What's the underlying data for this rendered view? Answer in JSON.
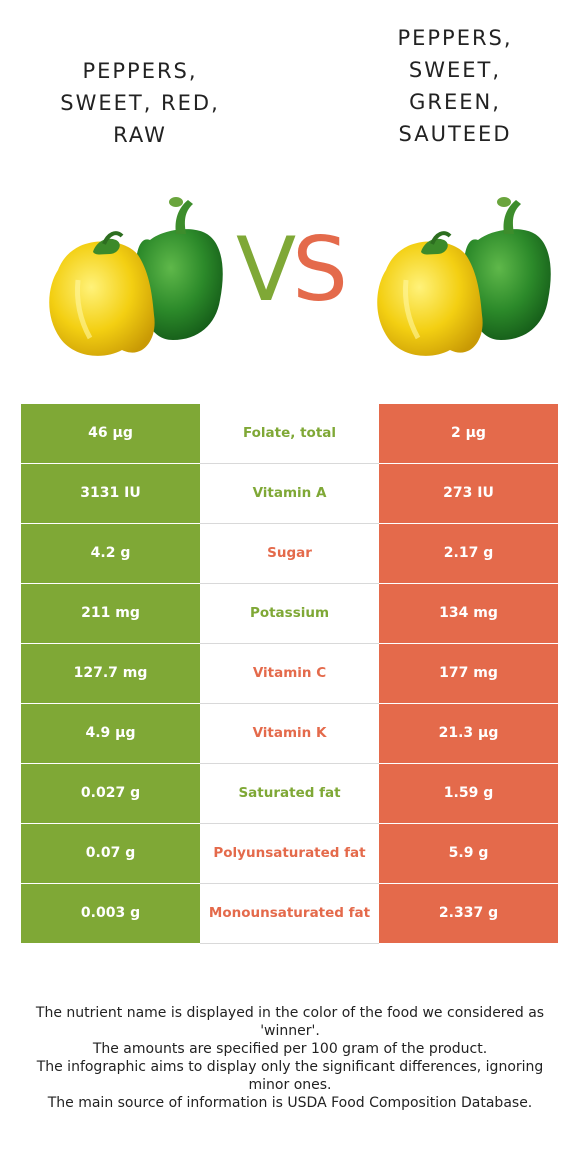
{
  "left_food": {
    "title": "Peppers, sweet, red, raw",
    "title_lines": [
      "PEPPERS,",
      "SWEET, RED,",
      "RAW"
    ]
  },
  "right_food": {
    "title": "Peppers, sweet, green, sauteed",
    "title_lines": [
      "PEPPERS,",
      "SWEET,",
      "GREEN,",
      "SAUTEED"
    ]
  },
  "vs": {
    "v": "V",
    "s": "S"
  },
  "colors": {
    "left": "#7fa836",
    "right": "#e46a4b"
  },
  "rows": [
    {
      "nutrient": "Folate, total",
      "left": "46 µg",
      "right": "2 µg",
      "winner": "left"
    },
    {
      "nutrient": "Vitamin A",
      "left": "3131 IU",
      "right": "273 IU",
      "winner": "left"
    },
    {
      "nutrient": "Sugar",
      "left": "4.2 g",
      "right": "2.17 g",
      "winner": "right"
    },
    {
      "nutrient": "Potassium",
      "left": "211 mg",
      "right": "134 mg",
      "winner": "left"
    },
    {
      "nutrient": "Vitamin C",
      "left": "127.7 mg",
      "right": "177 mg",
      "winner": "right"
    },
    {
      "nutrient": "Vitamin K",
      "left": "4.9 µg",
      "right": "21.3 µg",
      "winner": "right"
    },
    {
      "nutrient": "Saturated fat",
      "left": "0.027 g",
      "right": "1.59 g",
      "winner": "left"
    },
    {
      "nutrient": "Polyunsaturated fat",
      "left": "0.07 g",
      "right": "5.9 g",
      "winner": "right"
    },
    {
      "nutrient": "Monounsaturated fat",
      "left": "0.003 g",
      "right": "2.337 g",
      "winner": "right"
    }
  ],
  "footer": {
    "lines": [
      "The nutrient name is displayed in the color of the food we considered as 'winner'.",
      "The amounts are specified per 100 gram of the product.",
      "The infographic aims to display only the significant differences, ignoring minor ones.",
      "The main source of information is USDA Food Composition Database."
    ]
  }
}
